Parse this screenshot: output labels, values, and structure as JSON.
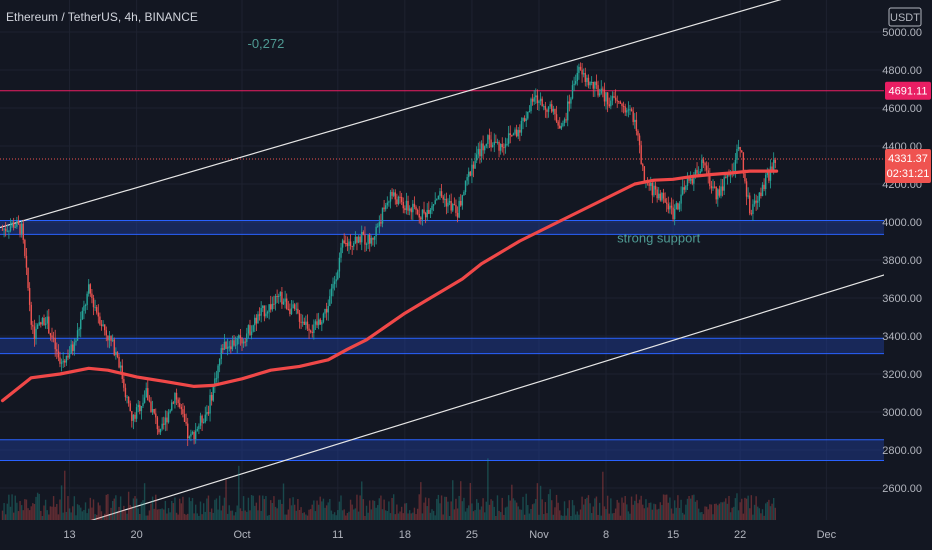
{
  "header": {
    "title": "Ethereum / TetherUS, 4h, BINANCE",
    "currency": "USDT"
  },
  "colors": {
    "background": "#131722",
    "grid": "#1e2230",
    "up": "#26a69a",
    "down": "#ef5350",
    "ma": "#f04848",
    "zone_fill": "#1f3f9e",
    "zone_edge": "#2962ff",
    "resistance": "#e91e63",
    "channel": "#e6e6e6",
    "price_badge": "#e91e63"
  },
  "chart_data": {
    "type": "candlestick",
    "title": "Ethereum / TetherUS, 4h, BINANCE",
    "x_ticks": [
      "13",
      "20",
      "Oct",
      "11",
      "18",
      "25",
      "Nov",
      "8",
      "15",
      "22",
      "Dec"
    ],
    "y_ticks": [
      2600,
      2800,
      3000,
      3200,
      3400,
      3600,
      3800,
      4000,
      4200,
      4400,
      4600,
      4800,
      5000
    ],
    "ylim": [
      2400,
      5030
    ],
    "price_path_days": [
      [
        0,
        3960
      ],
      [
        1.2,
        3990
      ],
      [
        2,
        3960
      ],
      [
        3.2,
        3400
      ],
      [
        4.5,
        3500
      ],
      [
        6,
        3250
      ],
      [
        7.5,
        3350
      ],
      [
        9,
        3640
      ],
      [
        10.5,
        3450
      ],
      [
        12,
        3300
      ],
      [
        13.5,
        2950
      ],
      [
        15,
        3100
      ],
      [
        16.5,
        2880
      ],
      [
        18,
        3100
      ],
      [
        19.5,
        2850
      ],
      [
        21.5,
        3020
      ],
      [
        23,
        3350
      ],
      [
        25,
        3380
      ],
      [
        27,
        3520
      ],
      [
        29,
        3600
      ],
      [
        31,
        3500
      ],
      [
        32.5,
        3430
      ],
      [
        34,
        3560
      ],
      [
        35.5,
        3870
      ],
      [
        37,
        3920
      ],
      [
        38.5,
        3900
      ],
      [
        40.5,
        4150
      ],
      [
        42,
        4080
      ],
      [
        44,
        4040
      ],
      [
        45.5,
        4150
      ],
      [
        47.5,
        4050
      ],
      [
        49,
        4300
      ],
      [
        50.5,
        4430
      ],
      [
        52,
        4400
      ],
      [
        54,
        4500
      ],
      [
        55.5,
        4650
      ],
      [
        57,
        4600
      ],
      [
        58.5,
        4500
      ],
      [
        60,
        4800
      ],
      [
        61.5,
        4720
      ],
      [
        63,
        4650
      ],
      [
        64.5,
        4620
      ],
      [
        66,
        4550
      ],
      [
        67,
        4200
      ],
      [
        68.5,
        4150
      ],
      [
        70,
        4050
      ],
      [
        71.5,
        4200
      ],
      [
        73,
        4300
      ],
      [
        74.5,
        4150
      ],
      [
        76,
        4250
      ],
      [
        77,
        4400
      ],
      [
        78,
        4050
      ],
      [
        79.5,
        4200
      ],
      [
        80.8,
        4331
      ]
    ],
    "moving_average": [
      [
        0,
        3060
      ],
      [
        3,
        3180
      ],
      [
        6,
        3200
      ],
      [
        9,
        3230
      ],
      [
        11,
        3220
      ],
      [
        14,
        3185
      ],
      [
        17,
        3160
      ],
      [
        20,
        3135
      ],
      [
        22,
        3140
      ],
      [
        25,
        3175
      ],
      [
        28,
        3220
      ],
      [
        31,
        3240
      ],
      [
        34,
        3275
      ],
      [
        36,
        3330
      ],
      [
        38,
        3380
      ],
      [
        40,
        3450
      ],
      [
        42,
        3520
      ],
      [
        44,
        3580
      ],
      [
        46,
        3640
      ],
      [
        48,
        3700
      ],
      [
        50,
        3780
      ],
      [
        52,
        3840
      ],
      [
        54,
        3900
      ],
      [
        56,
        3950
      ],
      [
        58,
        4000
      ],
      [
        60,
        4050
      ],
      [
        62,
        4100
      ],
      [
        64,
        4150
      ],
      [
        66,
        4200
      ],
      [
        68,
        4220
      ],
      [
        70,
        4225
      ],
      [
        72,
        4240
      ],
      [
        74,
        4250
      ],
      [
        76,
        4258
      ],
      [
        78,
        4268
      ],
      [
        80.8,
        4268
      ]
    ],
    "support_zones": [
      {
        "low": 3935,
        "high": 4008
      },
      {
        "low": 3307,
        "high": 3388
      },
      {
        "low": 2745,
        "high": 2854
      }
    ],
    "channel_lines": [
      {
        "from": [
          -1,
          3960
        ],
        "to": [
          88,
          5270
        ]
      },
      {
        "from": [
          7,
          2394
        ],
        "to": [
          96.5,
          3791
        ]
      }
    ],
    "resistance_level": 4691.11,
    "current_price": 4331.37,
    "annotations": [
      {
        "text": "-0,272",
        "day": 27.5,
        "price": 4915
      },
      {
        "text": "strong support",
        "day": 68.5,
        "price": 3892
      }
    ],
    "price_label": "4331.37",
    "countdown_label": "02:31:21",
    "resistance_label": "4691.11",
    "grid": true
  }
}
